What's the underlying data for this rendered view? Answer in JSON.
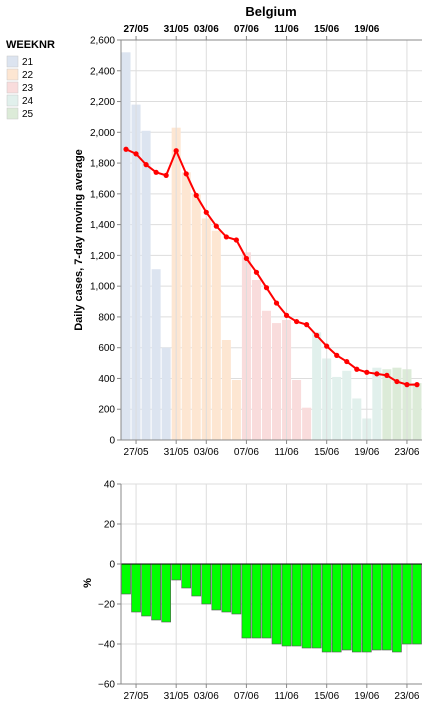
{
  "chart_data": [
    {
      "type": "bar+line",
      "title": "Belgium",
      "ylabel": "Daily cases, 7-day moving average",
      "ylim": [
        0,
        2600
      ],
      "y_ticks": [
        "0",
        "200",
        "400",
        "600",
        "800",
        "1,000",
        "1,200",
        "1,400",
        "1,600",
        "1,800",
        "2,000",
        "2,200",
        "2,400",
        "2,600"
      ],
      "x_ticks_top": [
        "27/05",
        "31/05",
        "03/06",
        "07/06",
        "11/06",
        "15/06",
        "19/06"
      ],
      "x_ticks_bottom": [
        "27/05",
        "31/05",
        "03/06",
        "07/06",
        "11/06",
        "15/06",
        "19/06",
        "23/06"
      ],
      "grid": true,
      "legend": {
        "title": "WEEKNR",
        "placement": "left",
        "entries": [
          {
            "label": "21",
            "color": "#dce4f0"
          },
          {
            "label": "22",
            "color": "#fde6d2"
          },
          {
            "label": "23",
            "color": "#f9dcdc"
          },
          {
            "label": "24",
            "color": "#e1f0ec"
          },
          {
            "label": "25",
            "color": "#dcebd8"
          }
        ]
      },
      "dates": [
        "26/05",
        "27/05",
        "28/05",
        "29/05",
        "30/05",
        "31/05",
        "01/06",
        "02/06",
        "03/06",
        "04/06",
        "05/06",
        "06/06",
        "07/06",
        "08/06",
        "09/06",
        "10/06",
        "11/06",
        "12/06",
        "13/06",
        "14/06",
        "15/06",
        "16/06",
        "17/06",
        "18/06",
        "19/06",
        "20/06",
        "21/06",
        "22/06",
        "23/06",
        "24/06"
      ],
      "bar_week": [
        "21",
        "21",
        "21",
        "21",
        "21",
        "22",
        "22",
        "22",
        "22",
        "22",
        "22",
        "22",
        "23",
        "23",
        "23",
        "23",
        "23",
        "23",
        "23",
        "24",
        "24",
        "24",
        "24",
        "24",
        "24",
        "24",
        "25",
        "25",
        "25",
        "25"
      ],
      "bar_values": [
        2520,
        2180,
        2010,
        1110,
        600,
        2030,
        1740,
        1600,
        1440,
        1360,
        650,
        390,
        1220,
        1040,
        840,
        760,
        780,
        390,
        210,
        700,
        530,
        410,
        450,
        270,
        140,
        470,
        460,
        470,
        460,
        370
      ],
      "line_series": {
        "name": "",
        "color": "#ff0000",
        "values": [
          1890,
          1860,
          1790,
          1740,
          1720,
          1880,
          1730,
          1590,
          1480,
          1390,
          1320,
          1300,
          1180,
          1090,
          990,
          890,
          810,
          770,
          750,
          680,
          610,
          550,
          510,
          460,
          440,
          430,
          420,
          380,
          360,
          360
        ]
      }
    },
    {
      "type": "bar",
      "ylabel": "%",
      "ylim": [
        -60,
        40
      ],
      "y_ticks": [
        "40",
        "20",
        "0",
        "−20",
        "−40",
        "−60"
      ],
      "x_ticks_bottom": [
        "27/05",
        "31/05",
        "03/06",
        "07/06",
        "11/06",
        "15/06",
        "19/06",
        "23/06"
      ],
      "grid": true,
      "bar_color": "#00ff00",
      "dates": [
        "26/05",
        "27/05",
        "28/05",
        "29/05",
        "30/05",
        "31/05",
        "01/06",
        "02/06",
        "03/06",
        "04/06",
        "05/06",
        "06/06",
        "07/06",
        "08/06",
        "09/06",
        "10/06",
        "11/06",
        "12/06",
        "13/06",
        "14/06",
        "15/06",
        "16/06",
        "17/06",
        "18/06",
        "19/06",
        "20/06",
        "21/06",
        "22/06",
        "23/06",
        "24/06"
      ],
      "values": [
        -15,
        -24,
        -26,
        -28,
        -29,
        -8,
        -12,
        -16,
        -20,
        -23,
        -24,
        -25,
        -37,
        -37,
        -37,
        -40,
        -41,
        -41,
        -42,
        -42,
        -44,
        -44,
        -43,
        -44,
        -44,
        -43,
        -43,
        -44,
        -40,
        -40
      ]
    }
  ]
}
